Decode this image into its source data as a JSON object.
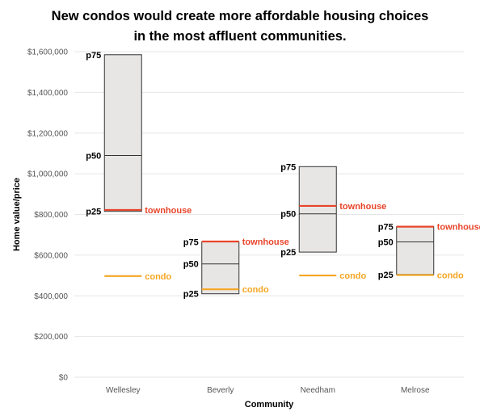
{
  "chart_data": {
    "type": "bar",
    "title_line1": "New condos would create more affordable housing choices",
    "title_line2": "in the most affluent communities.",
    "xlabel": "Community",
    "ylabel": "Home value/price",
    "ylim": [
      0,
      1600000
    ],
    "yticks": [
      0,
      200000,
      400000,
      600000,
      800000,
      1000000,
      1200000,
      1400000,
      1600000
    ],
    "ytick_labels": [
      "$0",
      "$200,000",
      "$400,000",
      "$600,000",
      "$800,000",
      "$1,000,000",
      "$1,200,000",
      "$1,400,000",
      "$1,600,000"
    ],
    "grid": true,
    "colors": {
      "box_fill": "#e8e6e5",
      "box_stroke": "#333333",
      "townhouse": "#e8452a",
      "condo": "#f5a623",
      "grid": "#e6e6e6"
    },
    "labels": {
      "p75": "p75",
      "p50": "p50",
      "p25": "p25",
      "townhouse": "townhouse",
      "condo": "condo"
    },
    "communities": [
      {
        "name": "Wellesley",
        "p25": 815000,
        "p50": 1090000,
        "p75": 1585000,
        "townhouse": 822000,
        "condo": 497000
      },
      {
        "name": "Beverly",
        "p25": 410000,
        "p50": 557000,
        "p75": 665000,
        "townhouse": 667000,
        "condo": 432000
      },
      {
        "name": "Needham",
        "p25": 615000,
        "p50": 803000,
        "p75": 1035000,
        "townhouse": 842000,
        "condo": 500000
      },
      {
        "name": "Melrose",
        "p25": 505000,
        "p50": 665000,
        "p75": 740000,
        "townhouse": 740000,
        "condo": 502000
      }
    ]
  }
}
